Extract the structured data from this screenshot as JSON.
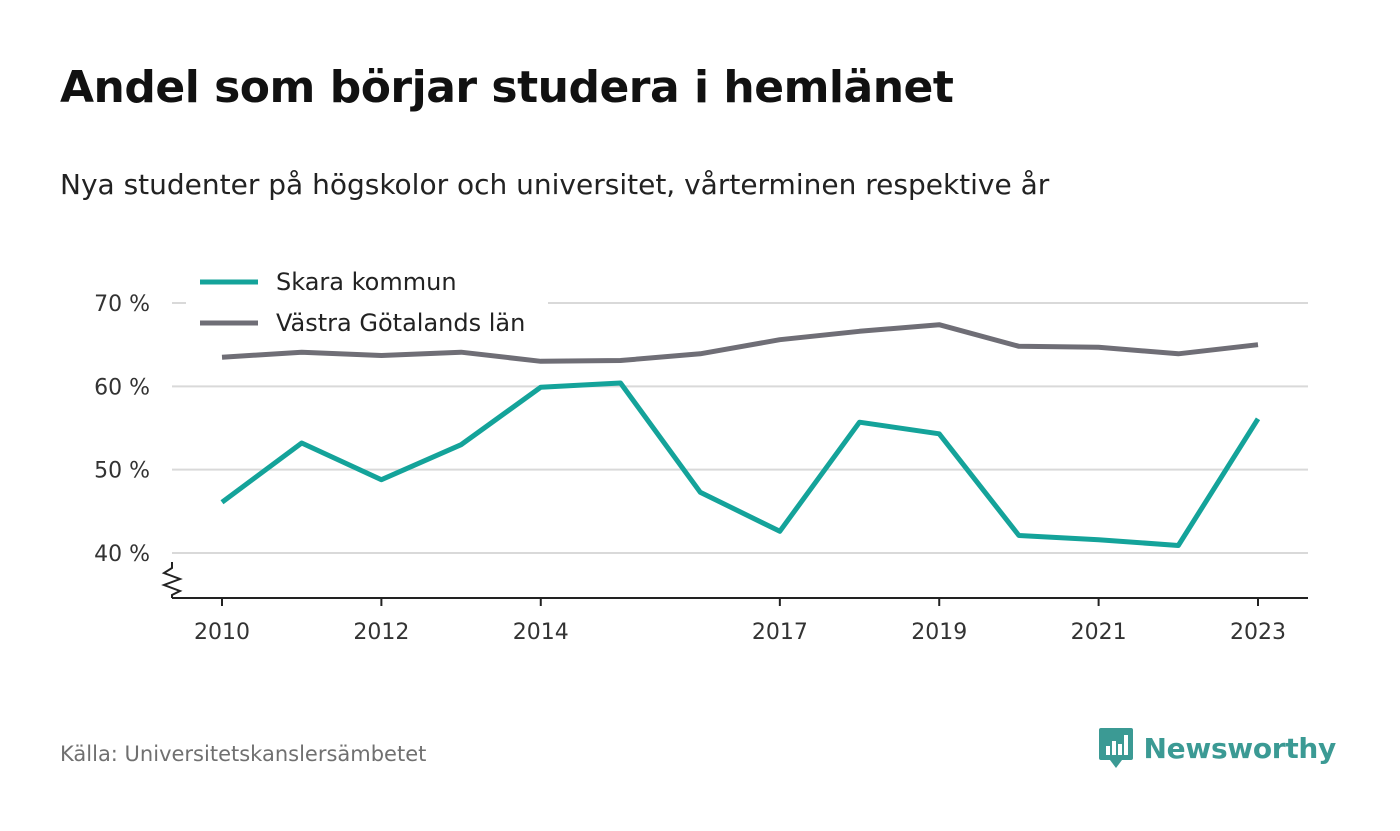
{
  "title": "Andel som börjar studera i hemlänet",
  "subtitle": "Nya studenter på högskolor och universitet, vårterminen respektive år",
  "source": "Källa: Universitetskanslersämbetet",
  "brand": {
    "name": "Newsworthy",
    "icon": "newsworthy-logo-icon",
    "color": "#3b9a94"
  },
  "chart_data": {
    "type": "line",
    "x": [
      2010,
      2011,
      2012,
      2013,
      2014,
      2015,
      2016,
      2017,
      2018,
      2019,
      2020,
      2021,
      2022,
      2023
    ],
    "x_tick_labels": [
      "2010",
      "2012",
      "2014",
      "2017",
      "2019",
      "2021",
      "2023"
    ],
    "y_tick_values": [
      40,
      50,
      60,
      70
    ],
    "y_tick_labels": [
      "40 %",
      "50 %",
      "60 %",
      "70 %"
    ],
    "ylim": [
      35,
      70
    ],
    "grid": true,
    "axis_break": true,
    "legend_position": "top-left",
    "series": [
      {
        "name": "Skara kommun",
        "color": "#14a39a",
        "values": [
          46.1,
          53.2,
          48.8,
          53.0,
          59.9,
          60.4,
          47.3,
          42.6,
          55.7,
          54.3,
          42.1,
          41.6,
          40.9,
          56.1
        ]
      },
      {
        "name": "Västra Götalands län",
        "color": "#6f6e76",
        "values": [
          63.5,
          64.1,
          63.7,
          64.1,
          63.0,
          63.1,
          63.9,
          65.6,
          66.6,
          67.4,
          64.8,
          64.7,
          63.9,
          65.0
        ]
      }
    ]
  }
}
